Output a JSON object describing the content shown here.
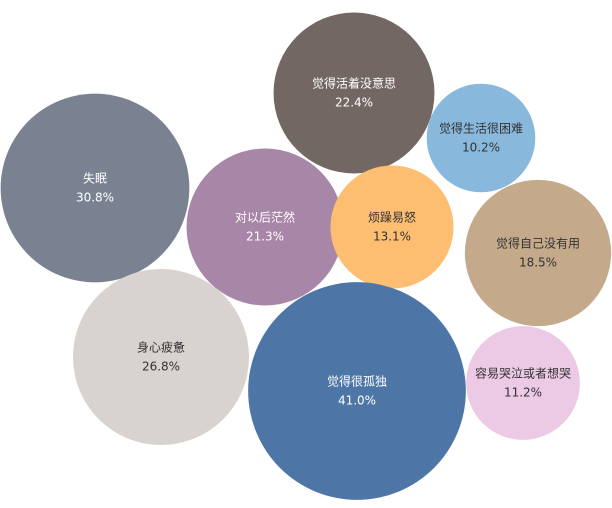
{
  "chart_data": {
    "type": "bubble",
    "categories": [
      "失眠",
      "觉得活着没意思",
      "觉得生活很困难",
      "对以后茫然",
      "烦躁易怒",
      "觉得自己没有用",
      "身心疲惫",
      "觉得很孤独",
      "容易哭泣或者想哭"
    ],
    "values": [
      30.8,
      22.4,
      10.2,
      21.3,
      13.1,
      18.5,
      26.8,
      41.0,
      11.2
    ],
    "value_labels": [
      "30.8%",
      "22.4%",
      "10.2%",
      "21.3%",
      "13.1%",
      "18.5%",
      "26.8%",
      "41.0%",
      "11.2%"
    ],
    "colors": [
      "#7a8191",
      "#726763",
      "#88b8dc",
      "#a886a8",
      "#fdbe72",
      "#c4a98b",
      "#d9d3d0",
      "#4d76a6",
      "#ecc9e5"
    ]
  }
}
